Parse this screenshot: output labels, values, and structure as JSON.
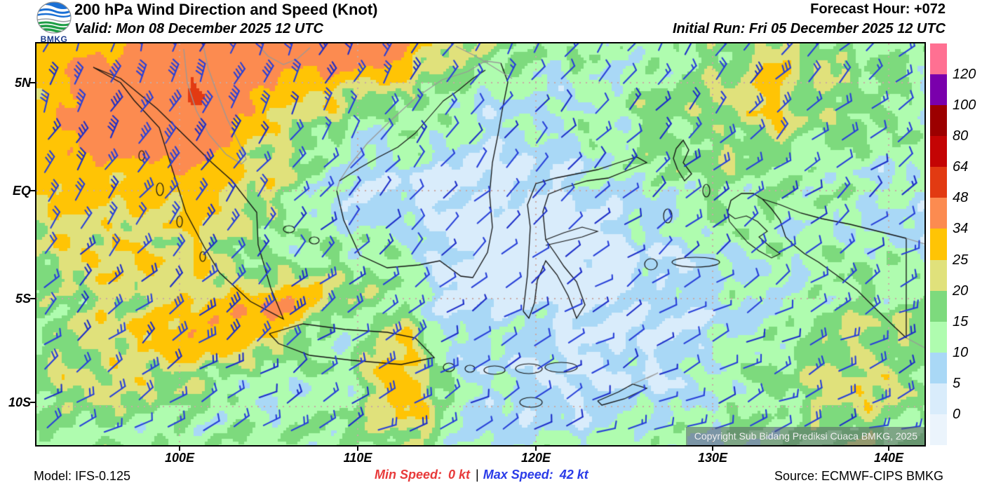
{
  "header": {
    "logo_label": "BMKG",
    "title": "200 hPa Wind Direction and Speed (Knot)",
    "valid": "Valid: Mon 08 December 2025 12 UTC",
    "forecast_hour": "Forecast Hour: +072",
    "initial_run": "Initial Run: Fri 05 December 2025 12 UTC"
  },
  "map": {
    "copyright": "Copyright Sub Bidang Prediksi Cuaca BMKG, 2025",
    "y_ticks": [
      "5N",
      "EQ",
      "5S",
      "10S"
    ],
    "x_ticks": [
      "100E",
      "110E",
      "120E",
      "130E",
      "140E"
    ]
  },
  "footer": {
    "model": "Model: IFS-0.125",
    "min_label": "Min Speed:",
    "min_value": "0 kt",
    "separator": "|",
    "max_label": "Max Speed:",
    "max_value": "42 kt",
    "source": "Source: ECMWF-CIPS BMKG"
  },
  "chart_data": {
    "type": "heatmap",
    "subtype": "wind-barb-map",
    "title": "200 hPa Wind Direction and Speed (Knot)",
    "valid_time": "Mon 08 December 2025 12 UTC",
    "initial_run": "Fri 05 December 2025 12 UTC",
    "forecast_hour": "+072",
    "model": "IFS-0.125",
    "source": "ECMWF-CIPS BMKG",
    "units": "knot",
    "min_speed_kt": 0,
    "max_speed_kt": 42,
    "lat_tick_labels": [
      "5N",
      "EQ",
      "5S",
      "10S"
    ],
    "lon_tick_labels": [
      "100E",
      "110E",
      "120E",
      "130E",
      "140E"
    ],
    "lon_range_deg_east": [
      92,
      142
    ],
    "lat_range_deg": [
      -12.5,
      7
    ],
    "legend_levels": [
      0,
      5,
      10,
      15,
      20,
      25,
      34,
      48,
      64,
      80,
      100,
      120
    ],
    "legend_colors": [
      "#EBF4FC",
      "#D9ECFB",
      "#A9D8F6",
      "#AFFCAF",
      "#7DDA7D",
      "#E0E17B",
      "#FFC405",
      "#FC8B50",
      "#E23A12",
      "#C40404",
      "#9C0000",
      "#7A00AC",
      "#FF7092"
    ],
    "style": {
      "barb_color": "#2840D8",
      "barb_color_dark": "#1D2EC8",
      "coast_color": "#111111",
      "foreign_coast_color": "#999999",
      "grid_color": "#C9A9A4",
      "frame_color": "#000000",
      "min_color": "#E83A3A",
      "max_color": "#2A3BE8",
      "logo_blue": "#1A6FD4",
      "logo_green": "#1E9E46"
    }
  }
}
